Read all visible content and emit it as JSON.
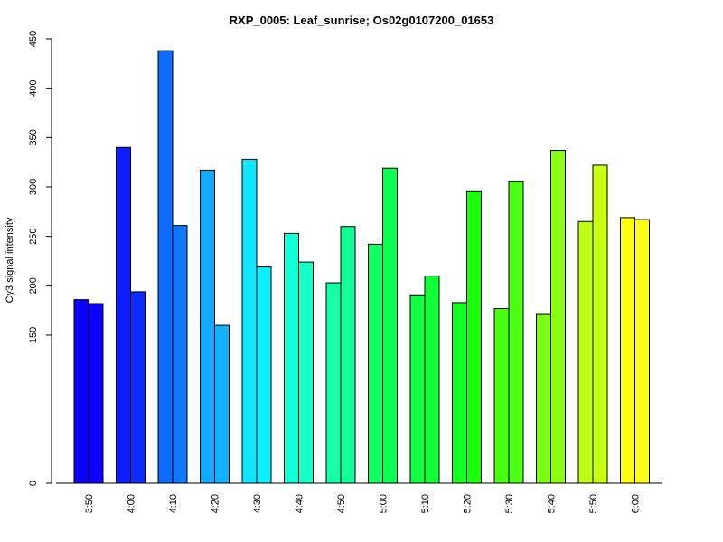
{
  "chart_data": {
    "type": "bar",
    "title": "RXP_0005: Leaf_sunrise; Os02g0107200_01653",
    "xlabel": "",
    "ylabel": "Cy3 signal intensity",
    "y_ticks": [
      0,
      150,
      200,
      250,
      300,
      350,
      400,
      450
    ],
    "grid": false,
    "legend": "none",
    "categories": [
      "3:50",
      "4:00",
      "4:10",
      "4:20",
      "4:30",
      "4:40",
      "4:50",
      "5:00",
      "5:10",
      "5:20",
      "5:30",
      "5:40",
      "5:50",
      "6:00"
    ],
    "series": [
      {
        "values": [
          186,
          340,
          438,
          317,
          328,
          253,
          203,
          242,
          190,
          183,
          177,
          171,
          265,
          269
        ]
      },
      {
        "values": [
          182,
          194,
          261,
          160,
          219,
          224,
          260,
          319,
          210,
          296,
          306,
          337,
          322,
          267
        ]
      }
    ],
    "colors": [
      [
        "#0b00ff",
        "#0c00ff"
      ],
      [
        "#0b1eff",
        "#0b2bff"
      ],
      [
        "#0d6bff",
        "#0e78ff"
      ],
      [
        "#11aaff",
        "#12b0ff"
      ],
      [
        "#10e6ff",
        "#0ff0ff"
      ],
      [
        "#12ffd8",
        "#15ffc8"
      ],
      [
        "#13ffa8",
        "#12ff98"
      ],
      [
        "#12ff66",
        "#0fff50"
      ],
      [
        "#12ff44",
        "#10ff38"
      ],
      [
        "#12ff22",
        "#1aff0c"
      ],
      [
        "#48ff12",
        "#4dff14"
      ],
      [
        "#7aff12",
        "#8bff12"
      ],
      [
        "#bfff12",
        "#c8ff12"
      ],
      [
        "#ffff12",
        "#ffff14"
      ]
    ]
  }
}
